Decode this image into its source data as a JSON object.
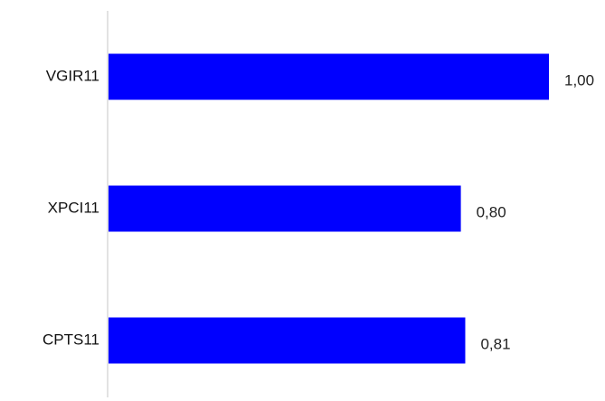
{
  "chart_data": {
    "type": "bar",
    "orientation": "horizontal",
    "categories": [
      "VGIR11",
      "XPCI11",
      "CPTS11"
    ],
    "values": [
      1.0,
      0.8,
      0.81
    ],
    "value_labels": [
      "1,00",
      "0,80",
      "0,81"
    ],
    "xlim": [
      0,
      1.0
    ],
    "grid": false,
    "legend": "none",
    "colors": {
      "bar": "#0000FF",
      "axis": "#D9D9D9",
      "text": "#111111"
    }
  }
}
